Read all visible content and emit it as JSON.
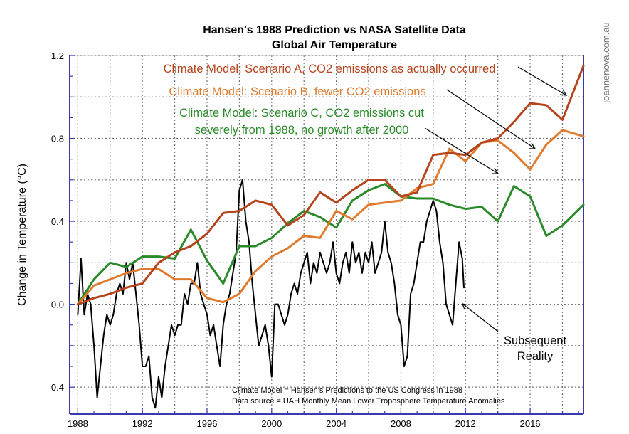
{
  "watermark": "joannenova.com.au",
  "colors": {
    "scenario_a": "#b5431c",
    "scenario_b": "#e07a2e",
    "scenario_c": "#2a8a2a",
    "observed": "#000000",
    "axis": "#3a3ab0",
    "grid": "#777777"
  },
  "chart_data": {
    "type": "line",
    "title": "Hansen's 1988 Prediction vs NASA Satellite Data",
    "subtitle": "Global Air Temperature",
    "ylabel": "Change in Temperature (°C)",
    "xlabel": "",
    "xlim": [
      1987.5,
      2019.3
    ],
    "ylim": [
      -0.53,
      1.2
    ],
    "x_ticks": [
      1988,
      1992,
      1996,
      2000,
      2004,
      2008,
      2012,
      2016
    ],
    "y_ticks": [
      -0.4,
      0.0,
      0.4,
      0.8,
      1.2
    ],
    "y_tick_labels": [
      "-0.4",
      "0.0",
      "0.4",
      "0.8",
      "1.2"
    ],
    "grid": true,
    "annotations": {
      "scenario_a": [
        "Climate Model: Scenario A, CO2 emissions as actually occurred"
      ],
      "scenario_b": [
        "Climate Model: Scenario B, fewer CO2 emissions"
      ],
      "scenario_c": [
        "Climate Model: Scenario C, CO2 emissions cut",
        "severely from 1988, no growth after 2000"
      ],
      "observed": [
        "Subsequent",
        "Reality"
      ],
      "footnote_1": "Climate Model = Hansen's Predictions to the US Congress in 1988",
      "footnote_2": "Data source = UAH Monthly Mean Lower Troposphere Temperature Anomalies"
    },
    "series": [
      {
        "key": "scenario_a",
        "x": [
          1988,
          1989,
          1990,
          1991,
          1992,
          1993,
          1994,
          1995,
          1996,
          1997,
          1998,
          1999,
          2000,
          2001,
          2002,
          2003,
          2004,
          2005,
          2006,
          2007,
          2008,
          2009,
          2010,
          2011,
          2012,
          2013,
          2014,
          2015,
          2016,
          2017,
          2018,
          2019.3
        ],
        "values": [
          0.0,
          0.03,
          0.05,
          0.08,
          0.1,
          0.2,
          0.25,
          0.28,
          0.34,
          0.44,
          0.45,
          0.5,
          0.48,
          0.38,
          0.43,
          0.54,
          0.49,
          0.55,
          0.6,
          0.6,
          0.52,
          0.54,
          0.72,
          0.73,
          0.72,
          0.78,
          0.8,
          0.88,
          0.97,
          0.96,
          0.89,
          1.15
        ]
      },
      {
        "key": "scenario_b",
        "x": [
          1988,
          1989,
          1990,
          1991,
          1992,
          1993,
          1994,
          1995,
          1996,
          1997,
          1998,
          1999,
          2000,
          2001,
          2002,
          2003,
          2004,
          2005,
          2006,
          2007,
          2008,
          2009,
          2010,
          2011,
          2012,
          2013,
          2014,
          2015,
          2016,
          2017,
          2018,
          2019.3
        ],
        "values": [
          0.0,
          0.09,
          0.12,
          0.15,
          0.17,
          0.17,
          0.12,
          0.12,
          0.03,
          0.01,
          0.05,
          0.16,
          0.23,
          0.27,
          0.33,
          0.32,
          0.45,
          0.41,
          0.48,
          0.49,
          0.5,
          0.56,
          0.58,
          0.75,
          0.69,
          0.78,
          0.79,
          0.73,
          0.65,
          0.77,
          0.84,
          0.81
        ]
      },
      {
        "key": "scenario_c",
        "x": [
          1988,
          1989,
          1990,
          1991,
          1992,
          1993,
          1994,
          1995,
          1996,
          1997,
          1998,
          1999,
          2000,
          2001,
          2002,
          2003,
          2004,
          2005,
          2006,
          2007,
          2008,
          2009,
          2010,
          2011,
          2012,
          2013,
          2014,
          2015,
          2016,
          2017,
          2018,
          2019.3
        ],
        "values": [
          0.0,
          0.12,
          0.2,
          0.18,
          0.23,
          0.23,
          0.22,
          0.36,
          0.21,
          0.1,
          0.28,
          0.28,
          0.32,
          0.39,
          0.45,
          0.42,
          0.37,
          0.5,
          0.55,
          0.58,
          0.52,
          0.51,
          0.51,
          0.48,
          0.46,
          0.47,
          0.4,
          0.57,
          0.52,
          0.33,
          0.38,
          0.48
        ]
      },
      {
        "key": "observed",
        "x": [
          1988.0,
          1988.2,
          1988.4,
          1988.6,
          1988.8,
          1989.0,
          1989.2,
          1989.4,
          1989.6,
          1989.8,
          1990.0,
          1990.2,
          1990.4,
          1990.6,
          1990.8,
          1991.0,
          1991.2,
          1991.4,
          1991.6,
          1991.8,
          1992.0,
          1992.2,
          1992.4,
          1992.6,
          1992.8,
          1993.0,
          1993.2,
          1993.4,
          1993.6,
          1993.8,
          1994.0,
          1994.2,
          1994.4,
          1994.6,
          1994.8,
          1995.0,
          1995.2,
          1995.4,
          1995.6,
          1995.8,
          1996.0,
          1996.2,
          1996.4,
          1996.6,
          1996.8,
          1997.0,
          1997.2,
          1997.4,
          1997.6,
          1997.8,
          1998.0,
          1998.2,
          1998.4,
          1998.6,
          1998.8,
          1999.0,
          1999.2,
          1999.4,
          1999.6,
          1999.8,
          2000.0,
          2000.2,
          2000.4,
          2000.6,
          2000.8,
          2001.0,
          2001.2,
          2001.4,
          2001.6,
          2001.8,
          2002.0,
          2002.2,
          2002.4,
          2002.6,
          2002.8,
          2003.0,
          2003.2,
          2003.4,
          2003.6,
          2003.8,
          2004.0,
          2004.2,
          2004.4,
          2004.6,
          2004.8,
          2005.0,
          2005.2,
          2005.4,
          2005.6,
          2005.8,
          2006.0,
          2006.2,
          2006.4,
          2006.6,
          2006.8,
          2007.0,
          2007.2,
          2007.4,
          2007.6,
          2007.8,
          2008.0,
          2008.2,
          2008.4,
          2008.6,
          2008.8,
          2009.0,
          2009.2,
          2009.4,
          2009.6,
          2009.8,
          2010.0,
          2010.2,
          2010.4,
          2010.6,
          2010.8,
          2011.0,
          2011.2,
          2011.4,
          2011.6,
          2011.8,
          2011.9
        ],
        "values": [
          -0.05,
          0.22,
          -0.05,
          0.05,
          0.0,
          -0.2,
          -0.45,
          -0.3,
          -0.15,
          -0.05,
          -0.1,
          -0.05,
          0.05,
          0.1,
          0.05,
          0.2,
          0.12,
          0.2,
          0.05,
          -0.1,
          -0.3,
          -0.3,
          -0.25,
          -0.45,
          -0.5,
          -0.35,
          -0.45,
          -0.3,
          -0.2,
          -0.1,
          -0.15,
          -0.1,
          -0.1,
          0.05,
          0.0,
          0.1,
          0.1,
          0.2,
          0.05,
          0.0,
          -0.05,
          -0.15,
          -0.1,
          -0.2,
          -0.3,
          -0.1,
          0.0,
          0.05,
          0.15,
          0.25,
          0.55,
          0.6,
          0.4,
          0.3,
          0.1,
          -0.05,
          -0.2,
          -0.15,
          -0.1,
          -0.2,
          -0.35,
          0.0,
          0.0,
          -0.05,
          -0.1,
          -0.05,
          0.05,
          0.1,
          0.05,
          0.15,
          0.2,
          0.25,
          0.1,
          0.2,
          0.15,
          0.25,
          0.2,
          0.15,
          0.2,
          0.3,
          0.15,
          0.1,
          0.2,
          0.25,
          0.15,
          0.3,
          0.2,
          0.25,
          0.15,
          0.25,
          0.2,
          0.3,
          0.15,
          0.2,
          0.25,
          0.4,
          0.25,
          0.2,
          0.1,
          -0.05,
          -0.1,
          -0.3,
          -0.25,
          0.05,
          0.1,
          0.2,
          0.3,
          0.3,
          0.4,
          0.45,
          0.5,
          0.45,
          0.3,
          0.2,
          0.0,
          -0.05,
          -0.1,
          0.1,
          0.3,
          0.22,
          0.08
        ]
      }
    ]
  }
}
